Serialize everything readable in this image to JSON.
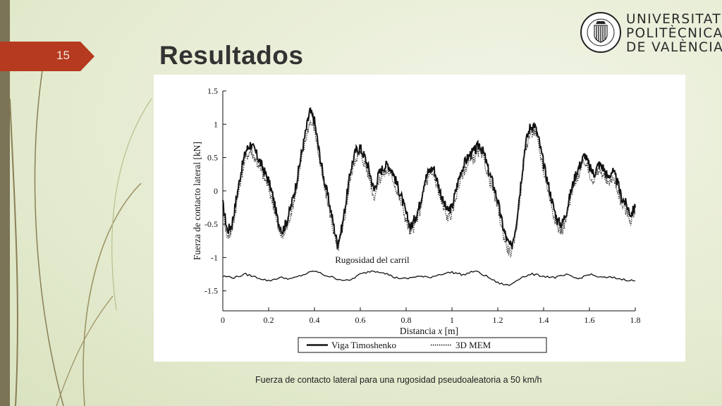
{
  "slide": {
    "number": "15",
    "title": "Resultados"
  },
  "logo": {
    "lines": [
      "UNIVERSITAT",
      "POLITÈCNICA",
      "DE VALÈNCIA"
    ],
    "seal_text": "UNIVERSITAT POLITÈCNICA DE VALÈNCIA"
  },
  "caption": "Fuerza de contacto lateral para una rugosidad pseudoaleatoria a 50 km/h",
  "colors": {
    "accent": "#b53a1f",
    "sidebar": "#7b7355",
    "background": "#e6ecd2"
  },
  "chart_data": {
    "type": "line",
    "xlabel_prefix": "Distancia ",
    "xlabel_var": "x",
    "xlabel_unit": " [m]",
    "ylabel": "Fuerza de contacto lateral [kN]",
    "xlim": [
      0,
      1.8
    ],
    "ylim": [
      -1.8,
      1.5
    ],
    "xticks": [
      "0",
      "0.2",
      "0.4",
      "0.6",
      "0.8",
      "1",
      "1.2",
      "1.4",
      "1.6",
      "1.8"
    ],
    "yticks": [
      "1.5",
      "1",
      "0.5",
      "0",
      "-0.5",
      "-1",
      "-1.5"
    ],
    "grid": false,
    "legend_position": "bottom",
    "annotation": {
      "text": "Rugosidad del carril",
      "x": 0.49,
      "y": -1.08
    },
    "series": [
      {
        "name": "Viga Timoshenko",
        "style": "solid",
        "x": [
          0,
          0.02,
          0.04,
          0.06,
          0.08,
          0.1,
          0.12,
          0.14,
          0.16,
          0.18,
          0.2,
          0.22,
          0.24,
          0.26,
          0.28,
          0.3,
          0.32,
          0.34,
          0.36,
          0.38,
          0.4,
          0.42,
          0.44,
          0.46,
          0.48,
          0.5,
          0.52,
          0.54,
          0.56,
          0.58,
          0.6,
          0.62,
          0.64,
          0.66,
          0.68,
          0.7,
          0.72,
          0.74,
          0.76,
          0.78,
          0.8,
          0.82,
          0.84,
          0.86,
          0.88,
          0.9,
          0.92,
          0.94,
          0.96,
          0.98,
          1.0,
          1.02,
          1.04,
          1.06,
          1.08,
          1.1,
          1.12,
          1.14,
          1.16,
          1.18,
          1.2,
          1.22,
          1.24,
          1.26,
          1.28,
          1.3,
          1.32,
          1.34,
          1.36,
          1.38,
          1.4,
          1.42,
          1.44,
          1.46,
          1.48,
          1.5,
          1.52,
          1.54,
          1.56,
          1.58,
          1.6,
          1.62,
          1.64,
          1.66,
          1.68,
          1.7,
          1.72,
          1.74,
          1.76,
          1.78,
          1.8
        ],
        "y": [
          -0.2,
          -0.6,
          -0.5,
          -0.1,
          0.3,
          0.6,
          0.7,
          0.6,
          0.45,
          0.3,
          0.15,
          -0.1,
          -0.45,
          -0.6,
          -0.45,
          -0.2,
          0.1,
          0.5,
          0.85,
          1.2,
          1.05,
          0.6,
          0.2,
          -0.1,
          -0.45,
          -0.8,
          -0.55,
          -0.1,
          0.35,
          0.6,
          0.65,
          0.5,
          0.3,
          0.0,
          0.25,
          0.35,
          0.4,
          0.3,
          0.1,
          -0.1,
          -0.35,
          -0.55,
          -0.4,
          -0.2,
          0.15,
          0.3,
          0.35,
          0.1,
          -0.15,
          -0.3,
          -0.25,
          0.05,
          0.3,
          0.45,
          0.55,
          0.6,
          0.7,
          0.55,
          0.3,
          0.1,
          -0.15,
          -0.5,
          -0.75,
          -0.85,
          -0.5,
          0.1,
          0.7,
          0.95,
          1.0,
          0.75,
          0.4,
          0.1,
          -0.2,
          -0.45,
          -0.5,
          -0.3,
          0.0,
          0.25,
          0.4,
          0.55,
          0.35,
          0.25,
          0.4,
          0.35,
          0.2,
          0.3,
          0.15,
          -0.1,
          -0.2,
          -0.35,
          -0.25
        ]
      },
      {
        "name": "3D MEM",
        "style": "dotted",
        "x": [
          0,
          0.02,
          0.04,
          0.06,
          0.08,
          0.1,
          0.12,
          0.14,
          0.16,
          0.18,
          0.2,
          0.22,
          0.24,
          0.26,
          0.28,
          0.3,
          0.32,
          0.34,
          0.36,
          0.38,
          0.4,
          0.42,
          0.44,
          0.46,
          0.48,
          0.5,
          0.52,
          0.54,
          0.56,
          0.58,
          0.6,
          0.62,
          0.64,
          0.66,
          0.68,
          0.7,
          0.72,
          0.74,
          0.76,
          0.78,
          0.8,
          0.82,
          0.84,
          0.86,
          0.88,
          0.9,
          0.92,
          0.94,
          0.96,
          0.98,
          1.0,
          1.02,
          1.04,
          1.06,
          1.08,
          1.1,
          1.12,
          1.14,
          1.16,
          1.18,
          1.2,
          1.22,
          1.24,
          1.26,
          1.28,
          1.3,
          1.32,
          1.34,
          1.36,
          1.38,
          1.4,
          1.42,
          1.44,
          1.46,
          1.48,
          1.5,
          1.52,
          1.54,
          1.56,
          1.58,
          1.6,
          1.62,
          1.64,
          1.66,
          1.68,
          1.7,
          1.72,
          1.74,
          1.76,
          1.78,
          1.8
        ],
        "y": [
          -0.3,
          -0.7,
          -0.6,
          -0.2,
          0.2,
          0.5,
          0.6,
          0.5,
          0.35,
          0.2,
          0.05,
          -0.2,
          -0.55,
          -0.7,
          -0.55,
          -0.3,
          0.0,
          0.4,
          0.75,
          1.05,
          0.95,
          0.5,
          0.1,
          -0.2,
          -0.55,
          -0.9,
          -0.65,
          -0.2,
          0.25,
          0.5,
          0.55,
          0.4,
          0.2,
          -0.1,
          0.15,
          0.25,
          0.3,
          0.2,
          0.0,
          -0.2,
          -0.45,
          -0.65,
          -0.5,
          -0.3,
          0.05,
          0.2,
          0.25,
          0.0,
          -0.25,
          -0.4,
          -0.35,
          -0.05,
          0.2,
          0.35,
          0.45,
          0.5,
          0.6,
          0.45,
          0.2,
          0.0,
          -0.25,
          -0.6,
          -0.85,
          -0.95,
          -0.6,
          0.0,
          0.6,
          0.85,
          0.9,
          0.65,
          0.3,
          0.0,
          -0.3,
          -0.55,
          -0.6,
          -0.4,
          -0.1,
          0.15,
          0.3,
          0.45,
          0.25,
          0.15,
          0.3,
          0.25,
          0.1,
          0.2,
          0.05,
          -0.2,
          -0.3,
          -0.45,
          -0.35
        ]
      },
      {
        "name": "Rugosidad del carril",
        "style": "solid-thin",
        "in_legend": false,
        "x": [
          0,
          0.05,
          0.1,
          0.15,
          0.2,
          0.25,
          0.3,
          0.35,
          0.4,
          0.45,
          0.5,
          0.55,
          0.6,
          0.65,
          0.7,
          0.75,
          0.8,
          0.85,
          0.9,
          0.95,
          1.0,
          1.05,
          1.1,
          1.15,
          1.2,
          1.25,
          1.3,
          1.35,
          1.4,
          1.45,
          1.5,
          1.55,
          1.6,
          1.65,
          1.7,
          1.75,
          1.8
        ],
        "y": [
          -1.28,
          -1.3,
          -1.25,
          -1.3,
          -1.35,
          -1.3,
          -1.32,
          -1.26,
          -1.2,
          -1.27,
          -1.32,
          -1.35,
          -1.25,
          -1.2,
          -1.22,
          -1.3,
          -1.32,
          -1.28,
          -1.3,
          -1.25,
          -1.22,
          -1.26,
          -1.2,
          -1.28,
          -1.38,
          -1.42,
          -1.3,
          -1.25,
          -1.28,
          -1.3,
          -1.26,
          -1.32,
          -1.25,
          -1.3,
          -1.3,
          -1.33,
          -1.35
        ]
      }
    ]
  }
}
